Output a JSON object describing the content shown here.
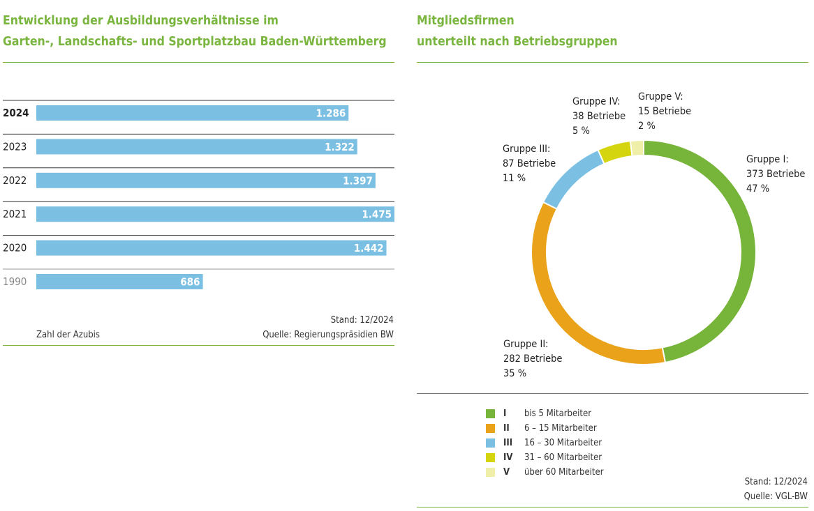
{
  "left_chart": {
    "title_line1": "Entwicklung der Ausbildungsverhältnisse im",
    "title_line2": "Garten-, Landschafts- und Sportplatzbau Baden-Württemberg",
    "xlabel": "Zahl der Azubis",
    "stand": "Stand: 12/2024",
    "source": "Quelle: Regierungspräsidien BW"
  },
  "right_chart": {
    "title_line1": "Mitgliedsfirmen",
    "title_line2": "unterteilt nach Betriebsgruppen",
    "stand": "Stand: 12/2024",
    "source": "Quelle: VGL-BW"
  },
  "chart_data": [
    {
      "type": "bar",
      "orientation": "horizontal",
      "categories": [
        "2024",
        "2023",
        "2022",
        "2021",
        "2020",
        "1990"
      ],
      "values": [
        1286,
        1322,
        1397,
        1475,
        1442,
        686
      ],
      "value_labels": [
        "1.286",
        "1.322",
        "1.397",
        "1.475",
        "1.442",
        "686"
      ],
      "xlim": [
        0,
        1475
      ],
      "grid": false,
      "color": "#7bbfe3"
    },
    {
      "type": "pie",
      "donut": true,
      "slices": [
        {
          "id": "I",
          "name_line": "Gruppe I:",
          "betriebe": "373 Betriebe",
          "value": 373,
          "percent": "47 %",
          "color": "#77b43a",
          "legend": "bis 5 Mitarbeiter"
        },
        {
          "id": "II",
          "name_line": "Gruppe II:",
          "betriebe": "282 Betriebe",
          "value": 282,
          "percent": "35 %",
          "color": "#eaa21b",
          "legend": "6 – 15 Mitarbeiter"
        },
        {
          "id": "III",
          "name_line": "Gruppe III:",
          "betriebe": "87 Betriebe",
          "value": 87,
          "percent": "11 %",
          "color": "#7bbfe3",
          "legend": "16 – 30 Mitarbeiter"
        },
        {
          "id": "IV",
          "name_line": "Gruppe IV:",
          "betriebe": "38 Betriebe",
          "value": 38,
          "percent": "5 %",
          "color": "#d4d50f",
          "legend": "31 – 60 Mitarbeiter"
        },
        {
          "id": "V",
          "name_line": "Gruppe V:",
          "betriebe": "15 Betriebe",
          "value": 15,
          "percent": "2 %",
          "color": "#efefaa",
          "legend": "über 60 Mitarbeiter"
        }
      ],
      "legend_position": "bottom-left"
    }
  ]
}
